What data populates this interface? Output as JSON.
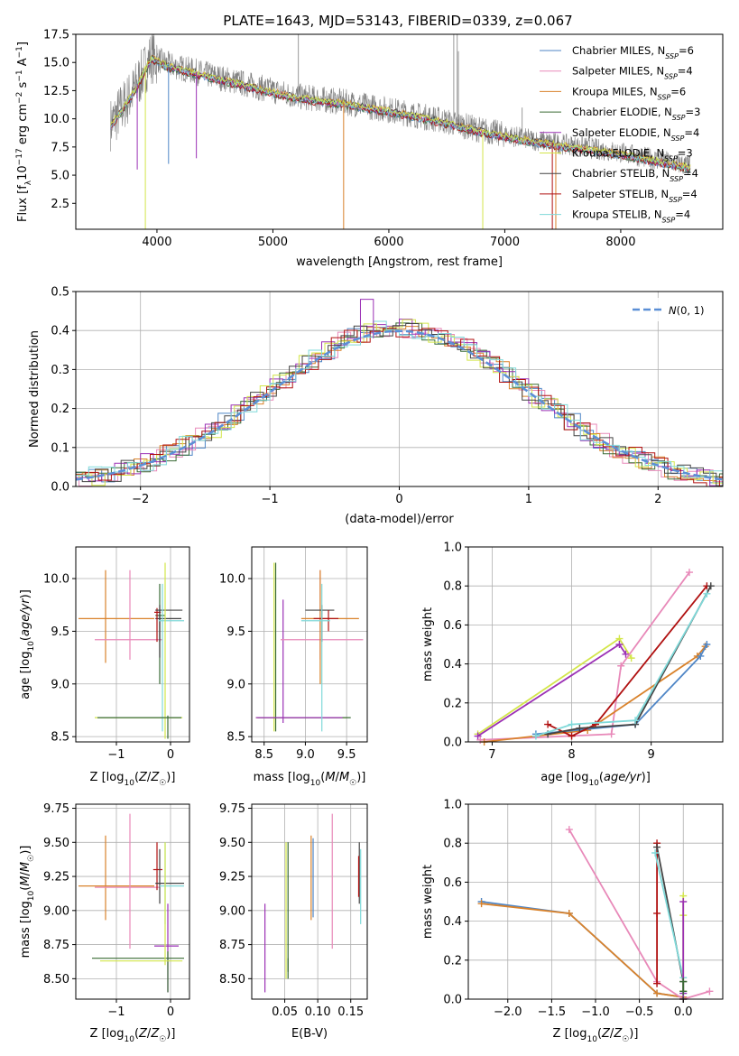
{
  "title": "PLATE=1643, MJD=53143, FIBERID=0339, z=0.067",
  "colors": {
    "chab_miles": "#4f86c6",
    "salp_miles": "#e889b9",
    "krou_miles": "#d9822b",
    "chab_elodie": "#3a6b35",
    "salp_elodie": "#9b30b5",
    "krou_elodie": "#d3e64a",
    "chab_stelib": "#444444",
    "salp_stelib": "#b01010",
    "krou_stelib": "#7fd9d9",
    "data": "#808080",
    "normal": "#5b8fd6"
  },
  "legend_models": [
    {
      "name": "Chabrier MILES",
      "n": "6",
      "color": "#4f86c6"
    },
    {
      "name": "Salpeter MILES",
      "n": "4",
      "color": "#e889b9"
    },
    {
      "name": "Kroupa MILES",
      "n": "6",
      "color": "#d9822b"
    },
    {
      "name": "Chabrier ELODIE",
      "n": "3",
      "color": "#3a6b35"
    },
    {
      "name": "Salpeter ELODIE",
      "n": "4",
      "color": "#9b30b5"
    },
    {
      "name": "Kroupa ELODIE",
      "n": "3",
      "color": "#d3e64a"
    },
    {
      "name": "Chabrier STELIB",
      "n": "4",
      "color": "#444444"
    },
    {
      "name": "Salpeter STELIB",
      "n": "4",
      "color": "#b01010"
    },
    {
      "name": "Kroupa STELIB",
      "n": "4",
      "color": "#7fd9d9"
    }
  ],
  "chart_data": [
    {
      "id": "spectrum",
      "type": "line",
      "xlabel": "wavelength [Angstrom, rest frame]",
      "ylabel": "Flux [f_λ 10^-17 erg cm^-2 s^-1 A^-1]",
      "xlim": [
        3300,
        8880
      ],
      "ylim": [
        0.2,
        17.5
      ],
      "xticks": [
        "4000",
        "5000",
        "6000",
        "7000",
        "8000"
      ],
      "yticks": [
        "2.5",
        "5.0",
        "7.5",
        "10.0",
        "12.5",
        "15.0",
        "17.5"
      ],
      "data_envelope_x": [
        3600,
        3800,
        3950,
        4100,
        4400,
        4800,
        5200,
        5600,
        6000,
        6400,
        6800,
        7200,
        7600,
        8000,
        8300,
        8600
      ],
      "data_envelope_y": [
        9.5,
        12.5,
        15.5,
        14.8,
        14.0,
        13.0,
        12.0,
        11.5,
        10.8,
        10.0,
        9.0,
        8.2,
        7.6,
        7.0,
        6.4,
        5.8
      ],
      "grid": false,
      "legend": "top-right"
    },
    {
      "id": "residuals",
      "type": "histogram",
      "xlabel": "(data-model)/error",
      "ylabel": "Normed distribution",
      "xlim": [
        -2.5,
        2.5
      ],
      "ylim": [
        0.0,
        0.5
      ],
      "xticks": [
        "−2",
        "−1",
        "0",
        "1",
        "2"
      ],
      "yticks": [
        "0.0",
        "0.1",
        "0.2",
        "0.3",
        "0.4",
        "0.5"
      ],
      "legend_label": "N(0,1)",
      "legend": "top-right",
      "grid": true
    },
    {
      "id": "Z_vs_age",
      "type": "scatter",
      "xlabel": "Z [log10(Z/Z☉)]",
      "ylabel": "age [log10(age/yr)]",
      "xlim": [
        -1.75,
        0.35
      ],
      "ylim": [
        8.45,
        10.3
      ],
      "xticks": [
        "−1",
        "0"
      ],
      "yticks": [
        "8.5",
        "9.0",
        "9.5",
        "10.0"
      ],
      "points": [
        {
          "x": -1.2,
          "y": 9.62,
          "xe": [
            -1.7,
            -0.3
          ],
          "ye": [
            9.2,
            10.08
          ],
          "c": "krou_miles"
        },
        {
          "x": -0.75,
          "y": 9.42,
          "xe": [
            -1.4,
            -0.15
          ],
          "ye": [
            9.23,
            10.08
          ],
          "c": "salp_miles"
        },
        {
          "x": -0.2,
          "y": 9.65,
          "xe": [
            -0.28,
            -0.1
          ],
          "ye": [
            9.0,
            9.95
          ],
          "c": "chab_elodie"
        },
        {
          "x": -0.2,
          "y": 9.62,
          "xe": [
            -0.28,
            0.2
          ],
          "ye": [
            9.25,
            9.7
          ],
          "c": "chab_stelib"
        },
        {
          "x": -0.25,
          "y": 9.68,
          "xe": [
            -0.3,
            -0.18
          ],
          "ye": [
            9.4,
            9.72
          ],
          "c": "salp_stelib"
        },
        {
          "x": -0.2,
          "y": 9.7,
          "xe": [
            -0.28,
            0.22
          ],
          "ye": [
            9.4,
            9.75
          ],
          "c": "chab_stelib"
        },
        {
          "x": -0.15,
          "y": 9.6,
          "xe": [
            -0.22,
            0.25
          ],
          "ye": [
            8.55,
            9.95
          ],
          "c": "krou_stelib"
        },
        {
          "x": -0.1,
          "y": 8.68,
          "xe": [
            -1.4,
            0.22
          ],
          "ye": [
            8.48,
            10.15
          ],
          "c": "krou_elodie"
        },
        {
          "x": -0.05,
          "y": 8.68,
          "xe": [
            -1.35,
            0.2
          ],
          "ye": [
            8.48,
            8.7
          ],
          "c": "chab_elodie"
        }
      ]
    },
    {
      "id": "mass_vs_age",
      "type": "scatter",
      "xlabel": "mass [log10(M/M☉)]",
      "ylabel": "",
      "xlim": [
        8.35,
        9.75
      ],
      "ylim": [
        8.45,
        10.3
      ],
      "xticks": [
        "8.5",
        "9.0",
        "9.5"
      ],
      "yticks": [
        "8.5",
        "9.0",
        "9.5",
        "10.0"
      ],
      "points": [
        {
          "x": 8.62,
          "y": 8.68,
          "xe": [
            8.4,
            9.5
          ],
          "ye": [
            8.55,
            10.15
          ],
          "c": "krou_elodie"
        },
        {
          "x": 8.64,
          "y": 8.68,
          "xe": [
            8.42,
            9.55
          ],
          "ye": [
            8.55,
            10.15
          ],
          "c": "chab_elodie"
        },
        {
          "x": 8.73,
          "y": 8.68,
          "xe": [
            8.4,
            9.45
          ],
          "ye": [
            8.63,
            9.8
          ],
          "c": "salp_elodie"
        },
        {
          "x": 9.18,
          "y": 9.42,
          "xe": [
            8.7,
            9.7
          ],
          "ye": [
            9.23,
            10.08
          ],
          "c": "salp_miles"
        },
        {
          "x": 9.18,
          "y": 9.62,
          "xe": [
            8.95,
            9.65
          ],
          "ye": [
            9.0,
            10.08
          ],
          "c": "krou_miles"
        },
        {
          "x": 9.2,
          "y": 9.7,
          "xe": [
            9.0,
            9.35
          ],
          "ye": [
            9.4,
            9.75
          ],
          "c": "chab_stelib"
        },
        {
          "x": 9.28,
          "y": 9.62,
          "xe": [
            9.1,
            9.4
          ],
          "ye": [
            9.5,
            9.7
          ],
          "c": "salp_stelib"
        },
        {
          "x": 9.2,
          "y": 9.6,
          "xe": [
            8.95,
            9.3
          ],
          "ye": [
            8.55,
            9.95
          ],
          "c": "krou_stelib"
        }
      ]
    },
    {
      "id": "age_vs_weight",
      "type": "line",
      "xlabel": "age [log10(age/yr)]",
      "ylabel": "mass weight",
      "xlim": [
        6.7,
        9.9
      ],
      "ylim": [
        0.0,
        1.0
      ],
      "xticks": [
        "7",
        "8",
        "9"
      ],
      "yticks": [
        "0.0",
        "0.2",
        "0.4",
        "0.6",
        "0.8",
        "1.0"
      ],
      "series": [
        {
          "c": "krou_elodie",
          "x": [
            6.82,
            8.6,
            8.75
          ],
          "y": [
            0.04,
            0.53,
            0.43
          ]
        },
        {
          "c": "salp_elodie",
          "x": [
            6.82,
            8.6,
            8.68
          ],
          "y": [
            0.03,
            0.5,
            0.45
          ]
        },
        {
          "c": "salp_miles",
          "x": [
            6.85,
            8.5,
            8.62,
            9.48
          ],
          "y": [
            0.01,
            0.04,
            0.39,
            0.87
          ]
        },
        {
          "c": "krou_miles",
          "x": [
            6.9,
            8.2,
            9.58,
            9.68
          ],
          "y": [
            0.0,
            0.06,
            0.44,
            0.49
          ]
        },
        {
          "c": "chab_miles",
          "x": [
            7.55,
            8.8,
            9.62,
            9.7
          ],
          "y": [
            0.04,
            0.09,
            0.44,
            0.5
          ]
        },
        {
          "c": "salp_stelib",
          "x": [
            7.7,
            8.0,
            8.3,
            9.7
          ],
          "y": [
            0.09,
            0.03,
            0.09,
            0.8
          ]
        },
        {
          "c": "chab_stelib",
          "x": [
            7.7,
            8.1,
            8.8,
            9.75
          ],
          "y": [
            0.04,
            0.07,
            0.09,
            0.8
          ]
        },
        {
          "c": "krou_stelib",
          "x": [
            7.55,
            8.0,
            8.8,
            9.7
          ],
          "y": [
            0.03,
            0.09,
            0.11,
            0.76
          ]
        }
      ],
      "grid": true
    },
    {
      "id": "Z_vs_mass",
      "type": "scatter",
      "xlabel": "Z [log10(Z/Z☉)]",
      "ylabel": "mass [log10(M/M☉)]",
      "xlim": [
        -1.75,
        0.35
      ],
      "ylim": [
        8.35,
        9.78
      ],
      "xticks": [
        "−1",
        "0"
      ],
      "yticks": [
        "8.50",
        "8.75",
        "9.00",
        "9.25",
        "9.50",
        "9.75"
      ],
      "points": [
        {
          "x": -1.2,
          "y": 9.18,
          "xe": [
            -1.7,
            -0.3
          ],
          "ye": [
            8.93,
            9.55
          ],
          "c": "krou_miles"
        },
        {
          "x": -0.75,
          "y": 9.17,
          "xe": [
            -1.4,
            -0.2
          ],
          "ye": [
            8.72,
            9.71
          ],
          "c": "salp_miles"
        },
        {
          "x": -0.25,
          "y": 9.3,
          "xe": [
            -0.32,
            -0.15
          ],
          "ye": [
            9.15,
            9.5
          ],
          "c": "salp_stelib"
        },
        {
          "x": -0.2,
          "y": 9.2,
          "xe": [
            -0.28,
            0.25
          ],
          "ye": [
            9.05,
            9.45
          ],
          "c": "chab_stelib"
        },
        {
          "x": -0.1,
          "y": 9.18,
          "xe": [
            -0.2,
            0.25
          ],
          "ye": [
            8.9,
            9.5
          ],
          "c": "krou_stelib"
        },
        {
          "x": -0.05,
          "y": 8.74,
          "xe": [
            -0.3,
            0.15
          ],
          "ye": [
            8.4,
            9.05
          ],
          "c": "salp_elodie"
        },
        {
          "x": -0.05,
          "y": 8.65,
          "xe": [
            -1.45,
            0.25
          ],
          "ye": [
            8.4,
            8.7
          ],
          "c": "chab_elodie"
        },
        {
          "x": -0.1,
          "y": 8.63,
          "xe": [
            -1.3,
            0.22
          ],
          "ye": [
            8.6,
            9.5
          ],
          "c": "krou_elodie"
        }
      ]
    },
    {
      "id": "ebv_vs_mass",
      "type": "scatter",
      "xlabel": "E(B-V)",
      "ylabel": "",
      "xlim": [
        0.0,
        0.175
      ],
      "ylim": [
        8.35,
        9.78
      ],
      "xticks": [
        "0.05",
        "0.10",
        "0.15"
      ],
      "yticks": [
        "8.50",
        "8.75",
        "9.00",
        "9.25",
        "9.50",
        "9.75"
      ],
      "vlines": [
        {
          "x": 0.02,
          "y0": 8.4,
          "y1": 9.05,
          "c": "salp_elodie"
        },
        {
          "x": 0.052,
          "y0": 8.5,
          "y1": 9.5,
          "c": "krou_elodie"
        },
        {
          "x": 0.055,
          "y0": 8.5,
          "y1": 9.5,
          "c": "chab_elodie"
        },
        {
          "x": 0.055,
          "y0": 8.55,
          "y1": 8.65,
          "c": "chab_elodie"
        },
        {
          "x": 0.09,
          "y0": 8.93,
          "y1": 9.55,
          "c": "krou_miles"
        },
        {
          "x": 0.093,
          "y0": 8.95,
          "y1": 9.53,
          "c": "chab_miles"
        },
        {
          "x": 0.122,
          "y0": 8.72,
          "y1": 9.71,
          "c": "salp_miles"
        },
        {
          "x": 0.163,
          "y0": 9.05,
          "y1": 9.5,
          "c": "chab_stelib"
        },
        {
          "x": 0.165,
          "y0": 8.9,
          "y1": 9.45,
          "c": "krou_stelib"
        },
        {
          "x": 0.162,
          "y0": 9.1,
          "y1": 9.4,
          "c": "salp_stelib"
        }
      ]
    },
    {
      "id": "Z_vs_weight",
      "type": "line",
      "xlabel": "Z [log10(Z/Z☉)]",
      "ylabel": "mass weight",
      "xlim": [
        -2.45,
        0.45
      ],
      "ylim": [
        0.0,
        1.0
      ],
      "xticks": [
        "−2.0",
        "−1.5",
        "−1.0",
        "−0.5",
        "0.0"
      ],
      "yticks": [
        "0.0",
        "0.2",
        "0.4",
        "0.6",
        "0.8",
        "1.0"
      ],
      "series": [
        {
          "c": "chab_miles",
          "x": [
            -2.3,
            -1.3,
            -0.3,
            0.0
          ],
          "y": [
            0.5,
            0.44,
            0.03,
            0.01
          ]
        },
        {
          "c": "krou_miles",
          "x": [
            -2.3,
            -1.3,
            -0.3,
            0.0
          ],
          "y": [
            0.49,
            0.44,
            0.03,
            0.01
          ]
        },
        {
          "c": "salp_miles",
          "x": [
            -1.3,
            -0.3,
            0.0,
            0.3
          ],
          "y": [
            0.87,
            0.09,
            0.0,
            0.04
          ]
        },
        {
          "c": "salp_stelib",
          "x": [
            -0.3,
            -0.3,
            -0.3
          ],
          "y": [
            0.8,
            0.44,
            0.08
          ]
        },
        {
          "c": "chab_stelib",
          "x": [
            -0.3,
            0.0,
            0.0
          ],
          "y": [
            0.78,
            0.09,
            0.0
          ]
        },
        {
          "c": "krou_stelib",
          "x": [
            -0.32,
            0.0,
            0.0
          ],
          "y": [
            0.75,
            0.11,
            0.03
          ]
        },
        {
          "c": "krou_elodie",
          "x": [
            0.0,
            0.0,
            0.0
          ],
          "y": [
            0.53,
            0.04,
            0.43
          ]
        },
        {
          "c": "salp_elodie",
          "x": [
            0.0,
            0.0
          ],
          "y": [
            0.5,
            0.03
          ]
        },
        {
          "c": "chab_elodie",
          "x": [
            0.0,
            0.0
          ],
          "y": [
            0.09,
            0.04
          ]
        }
      ],
      "grid": true
    }
  ]
}
